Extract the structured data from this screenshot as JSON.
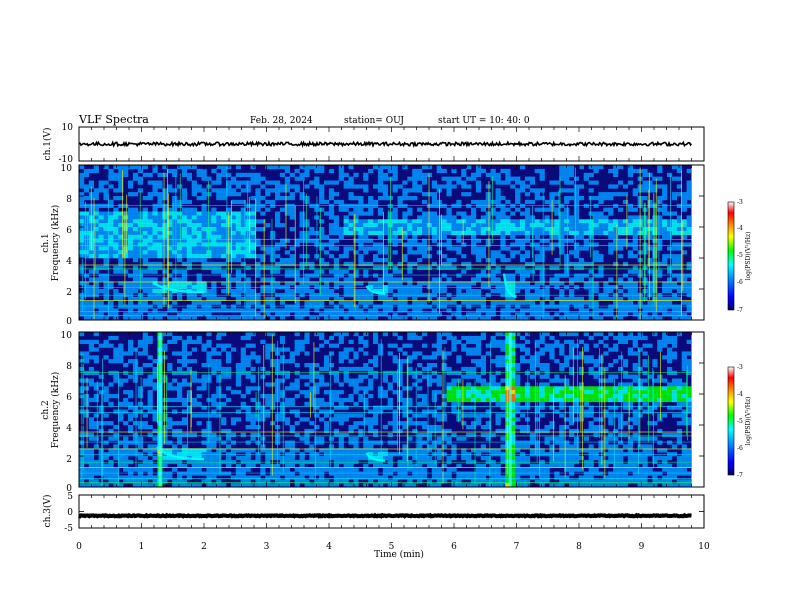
{
  "header": {
    "title": "VLF Spectra",
    "date": "Feb. 28, 2024",
    "station": "station= OUJ",
    "start": "start UT =  10: 40: 0"
  },
  "colors": {
    "trace": "#000000",
    "axis": "#000000",
    "background": "#ffffff",
    "colormap": [
      "#00006a",
      "#0000ff",
      "#0096ff",
      "#00ffff",
      "#00ff00",
      "#ffff00",
      "#ff8000",
      "#ff0000",
      "#ffffff"
    ]
  },
  "chart_data": [
    {
      "type": "line",
      "panel": "ch1-waveform",
      "ylabel": "ch.1(V)",
      "ylim": [
        -10,
        10
      ],
      "yticks": [
        "10",
        "-10"
      ],
      "xlim": [
        0,
        10
      ],
      "data_extent_min": [
        0,
        9.8
      ],
      "trace_level_V": 0,
      "trace_spread_V": 2
    },
    {
      "type": "heatmap",
      "panel": "ch1-spectrogram",
      "ylabel": "ch.1",
      "ylabel2": "Frequency (kHz)",
      "ylim": [
        0,
        10
      ],
      "yticks": [
        "0",
        "2",
        "4",
        "6",
        "8",
        "10"
      ],
      "xlim": [
        0,
        10
      ],
      "colorbar": {
        "label": "log(PSD)(V²/Hz)",
        "range": [
          -7,
          -3
        ],
        "ticks": [
          "-3",
          "-4",
          "-5",
          "-6",
          "-7"
        ]
      },
      "features": [
        {
          "kind": "broadband noise band",
          "t_min": [
            0,
            2.8
          ],
          "f_kHz": [
            4,
            7
          ]
        },
        {
          "kind": "emission band",
          "t_min": [
            4.2,
            9.8
          ],
          "f_kHz": [
            5.5,
            6.5
          ]
        },
        {
          "kind": "dispersed whistler",
          "t_min": [
            1.2,
            2.0
          ],
          "f_kHz": [
            1.8,
            2.4
          ]
        },
        {
          "kind": "whistler",
          "t_min": [
            4.6,
            4.9
          ],
          "f_kHz": [
            1.7,
            2.2
          ]
        },
        {
          "kind": "whistler",
          "t_min": [
            6.8,
            7.0
          ],
          "f_kHz": [
            1.5,
            3.0
          ]
        }
      ]
    },
    {
      "type": "heatmap",
      "panel": "ch2-spectrogram",
      "ylabel": "ch.2",
      "ylabel2": "Frequency (kHz)",
      "ylim": [
        0,
        10
      ],
      "yticks": [
        "0",
        "2",
        "4",
        "6",
        "8",
        "10"
      ],
      "xlim": [
        0,
        10
      ],
      "colorbar": {
        "label": "log(PSD)(V²/Hz)",
        "range": [
          -7,
          -3
        ],
        "ticks": [
          "-3",
          "-4",
          "-5",
          "-6",
          "-7"
        ]
      },
      "features": [
        {
          "kind": "strong emission band",
          "t_min": [
            5.9,
            9.8
          ],
          "f_kHz": [
            5.6,
            6.4
          ]
        },
        {
          "kind": "dispersed whistler",
          "t_min": [
            1.25,
            2.0
          ],
          "f_kHz": [
            1.8,
            2.6
          ]
        },
        {
          "kind": "whistler",
          "t_min": [
            4.6,
            4.9
          ],
          "f_kHz": [
            1.7,
            2.2
          ]
        },
        {
          "kind": "broadband impulse",
          "t_min": [
            1.25,
            1.35
          ],
          "f_kHz": [
            0,
            10
          ]
        },
        {
          "kind": "broadband impulse",
          "t_min": [
            6.85,
            6.95
          ],
          "f_kHz": [
            0,
            10
          ]
        }
      ]
    },
    {
      "type": "line",
      "panel": "ch3-waveform",
      "ylabel": "ch.3(V)",
      "ylim": [
        -5,
        5
      ],
      "yticks": [
        "5",
        "0",
        "-5"
      ],
      "xlim": [
        0,
        10
      ],
      "data_extent_min": [
        0,
        9.8
      ],
      "trace_level_V": -1.3,
      "trace_spread_V": 0.3
    }
  ],
  "x_axis": {
    "label": "Time (min)",
    "ticks": [
      "0",
      "1",
      "2",
      "3",
      "4",
      "5",
      "6",
      "7",
      "8",
      "9",
      "10"
    ]
  }
}
